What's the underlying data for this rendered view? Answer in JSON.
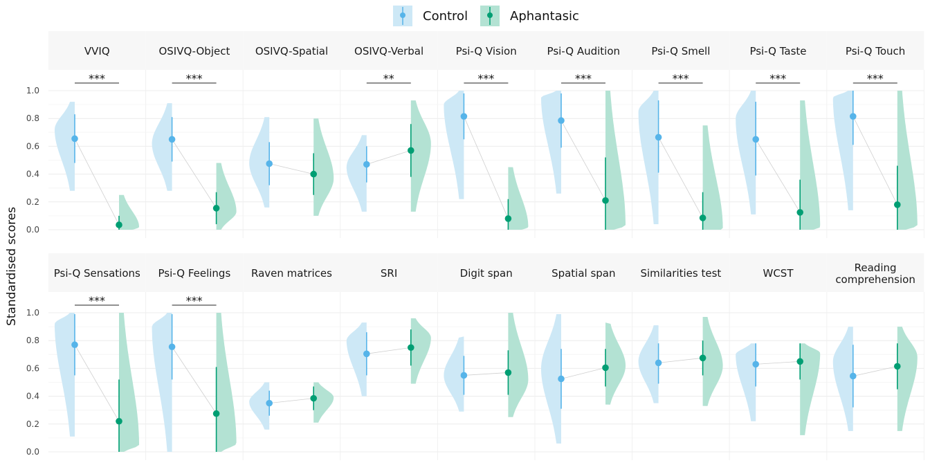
{
  "chart_data": {
    "type": "violin",
    "ylabel": "Standardised scores",
    "ylim": [
      0,
      1
    ],
    "yticks": [
      "0.0",
      "0.2",
      "0.4",
      "0.6",
      "0.8",
      "1.0"
    ],
    "legend": {
      "position": "top",
      "entries": [
        {
          "name": "Control",
          "color": "#56B4E9",
          "fill": "#cde8f6"
        },
        {
          "name": "Aphantasic",
          "color": "#009E73",
          "fill": "#b3e2d3"
        }
      ]
    },
    "panels": [
      {
        "label": "VVIQ",
        "sig": "***",
        "control": {
          "mean": 0.655,
          "lo": 0.48,
          "hi": 0.83,
          "min": 0.28,
          "max": 0.92,
          "mode": 0.72
        },
        "aphantasic": {
          "mean": 0.035,
          "lo": 0.0,
          "hi": 0.1,
          "min": 0.0,
          "max": 0.25,
          "mode": 0.02
        }
      },
      {
        "label": "OSIVQ-Object",
        "sig": "***",
        "control": {
          "mean": 0.65,
          "lo": 0.49,
          "hi": 0.81,
          "min": 0.28,
          "max": 0.91,
          "mode": 0.62
        },
        "aphantasic": {
          "mean": 0.155,
          "lo": 0.04,
          "hi": 0.27,
          "min": 0.0,
          "max": 0.48,
          "mode": 0.13
        }
      },
      {
        "label": "OSIVQ-Spatial",
        "sig": "",
        "control": {
          "mean": 0.475,
          "lo": 0.32,
          "hi": 0.63,
          "min": 0.16,
          "max": 0.81,
          "mode": 0.48
        },
        "aphantasic": {
          "mean": 0.4,
          "lo": 0.25,
          "hi": 0.55,
          "min": 0.1,
          "max": 0.8,
          "mode": 0.37
        }
      },
      {
        "label": "OSIVQ-Verbal",
        "sig": "**",
        "control": {
          "mean": 0.47,
          "lo": 0.34,
          "hi": 0.6,
          "min": 0.13,
          "max": 0.68,
          "mode": 0.45
        },
        "aphantasic": {
          "mean": 0.57,
          "lo": 0.38,
          "hi": 0.76,
          "min": 0.13,
          "max": 0.93,
          "mode": 0.62
        }
      },
      {
        "label": "Psi-Q Vision",
        "sig": "***",
        "control": {
          "mean": 0.815,
          "lo": 0.65,
          "hi": 0.98,
          "min": 0.22,
          "max": 1.0,
          "mode": 0.9
        },
        "aphantasic": {
          "mean": 0.08,
          "lo": 0.0,
          "hi": 0.22,
          "min": 0.0,
          "max": 0.45,
          "mode": 0.02
        }
      },
      {
        "label": "Psi-Q Audition",
        "sig": "***",
        "control": {
          "mean": 0.785,
          "lo": 0.59,
          "hi": 0.98,
          "min": 0.26,
          "max": 1.0,
          "mode": 0.95
        },
        "aphantasic": {
          "mean": 0.21,
          "lo": 0.0,
          "hi": 0.52,
          "min": 0.0,
          "max": 1.0,
          "mode": 0.03
        }
      },
      {
        "label": "Psi-Q Smell",
        "sig": "***",
        "control": {
          "mean": 0.665,
          "lo": 0.41,
          "hi": 0.93,
          "min": 0.04,
          "max": 1.0,
          "mode": 0.85
        },
        "aphantasic": {
          "mean": 0.085,
          "lo": 0.0,
          "hi": 0.27,
          "min": 0.0,
          "max": 0.75,
          "mode": 0.01
        }
      },
      {
        "label": "Psi-Q Taste",
        "sig": "***",
        "control": {
          "mean": 0.65,
          "lo": 0.39,
          "hi": 0.92,
          "min": 0.11,
          "max": 1.0,
          "mode": 0.8
        },
        "aphantasic": {
          "mean": 0.125,
          "lo": 0.0,
          "hi": 0.36,
          "min": 0.0,
          "max": 0.93,
          "mode": 0.02
        }
      },
      {
        "label": "Psi-Q Touch",
        "sig": "***",
        "control": {
          "mean": 0.815,
          "lo": 0.61,
          "hi": 1.0,
          "min": 0.14,
          "max": 1.0,
          "mode": 0.95
        },
        "aphantasic": {
          "mean": 0.18,
          "lo": 0.0,
          "hi": 0.46,
          "min": 0.0,
          "max": 1.0,
          "mode": 0.03
        }
      },
      {
        "label": "Psi-Q Sensations",
        "sig": "***",
        "control": {
          "mean": 0.77,
          "lo": 0.55,
          "hi": 0.99,
          "min": 0.11,
          "max": 1.0,
          "mode": 0.92
        },
        "aphantasic": {
          "mean": 0.22,
          "lo": 0.0,
          "hi": 0.52,
          "min": 0.0,
          "max": 1.0,
          "mode": 0.05
        }
      },
      {
        "label": "Psi-Q Feelings",
        "sig": "***",
        "control": {
          "mean": 0.755,
          "lo": 0.52,
          "hi": 0.99,
          "min": 0.0,
          "max": 1.0,
          "mode": 0.9
        },
        "aphantasic": {
          "mean": 0.275,
          "lo": 0.0,
          "hi": 0.61,
          "min": 0.0,
          "max": 1.0,
          "mode": 0.06
        }
      },
      {
        "label": "Raven matrices",
        "sig": "",
        "control": {
          "mean": 0.35,
          "lo": 0.26,
          "hi": 0.44,
          "min": 0.16,
          "max": 0.5,
          "mode": 0.36
        },
        "aphantasic": {
          "mean": 0.385,
          "lo": 0.3,
          "hi": 0.47,
          "min": 0.21,
          "max": 0.5,
          "mode": 0.39
        }
      },
      {
        "label": "SRI",
        "sig": "",
        "control": {
          "mean": 0.705,
          "lo": 0.55,
          "hi": 0.86,
          "min": 0.4,
          "max": 0.93,
          "mode": 0.8
        },
        "aphantasic": {
          "mean": 0.75,
          "lo": 0.62,
          "hi": 0.88,
          "min": 0.49,
          "max": 0.96,
          "mode": 0.82
        }
      },
      {
        "label": "Digit span",
        "sig": "",
        "control": {
          "mean": 0.55,
          "lo": 0.41,
          "hi": 0.69,
          "min": 0.29,
          "max": 0.83,
          "mode": 0.55
        },
        "aphantasic": {
          "mean": 0.57,
          "lo": 0.41,
          "hi": 0.73,
          "min": 0.25,
          "max": 1.0,
          "mode": 0.52
        }
      },
      {
        "label": "Spatial span",
        "sig": "",
        "control": {
          "mean": 0.525,
          "lo": 0.31,
          "hi": 0.74,
          "min": 0.06,
          "max": 0.99,
          "mode": 0.6
        },
        "aphantasic": {
          "mean": 0.605,
          "lo": 0.47,
          "hi": 0.74,
          "min": 0.34,
          "max": 0.93,
          "mode": 0.62
        }
      },
      {
        "label": "Similarities test",
        "sig": "",
        "control": {
          "mean": 0.64,
          "lo": 0.49,
          "hi": 0.78,
          "min": 0.35,
          "max": 0.91,
          "mode": 0.65
        },
        "aphantasic": {
          "mean": 0.675,
          "lo": 0.55,
          "hi": 0.8,
          "min": 0.33,
          "max": 0.97,
          "mode": 0.62
        }
      },
      {
        "label": "WCST",
        "sig": "",
        "control": {
          "mean": 0.63,
          "lo": 0.47,
          "hi": 0.78,
          "min": 0.22,
          "max": 0.78,
          "mode": 0.7
        },
        "aphantasic": {
          "mean": 0.65,
          "lo": 0.52,
          "hi": 0.78,
          "min": 0.12,
          "max": 0.78,
          "mode": 0.71
        }
      },
      {
        "label": "Reading comprehension",
        "sig": "",
        "control": {
          "mean": 0.545,
          "lo": 0.32,
          "hi": 0.77,
          "min": 0.15,
          "max": 0.9,
          "mode": 0.65
        },
        "aphantasic": {
          "mean": 0.615,
          "lo": 0.45,
          "hi": 0.78,
          "min": 0.15,
          "max": 0.9,
          "mode": 0.68
        }
      }
    ]
  }
}
